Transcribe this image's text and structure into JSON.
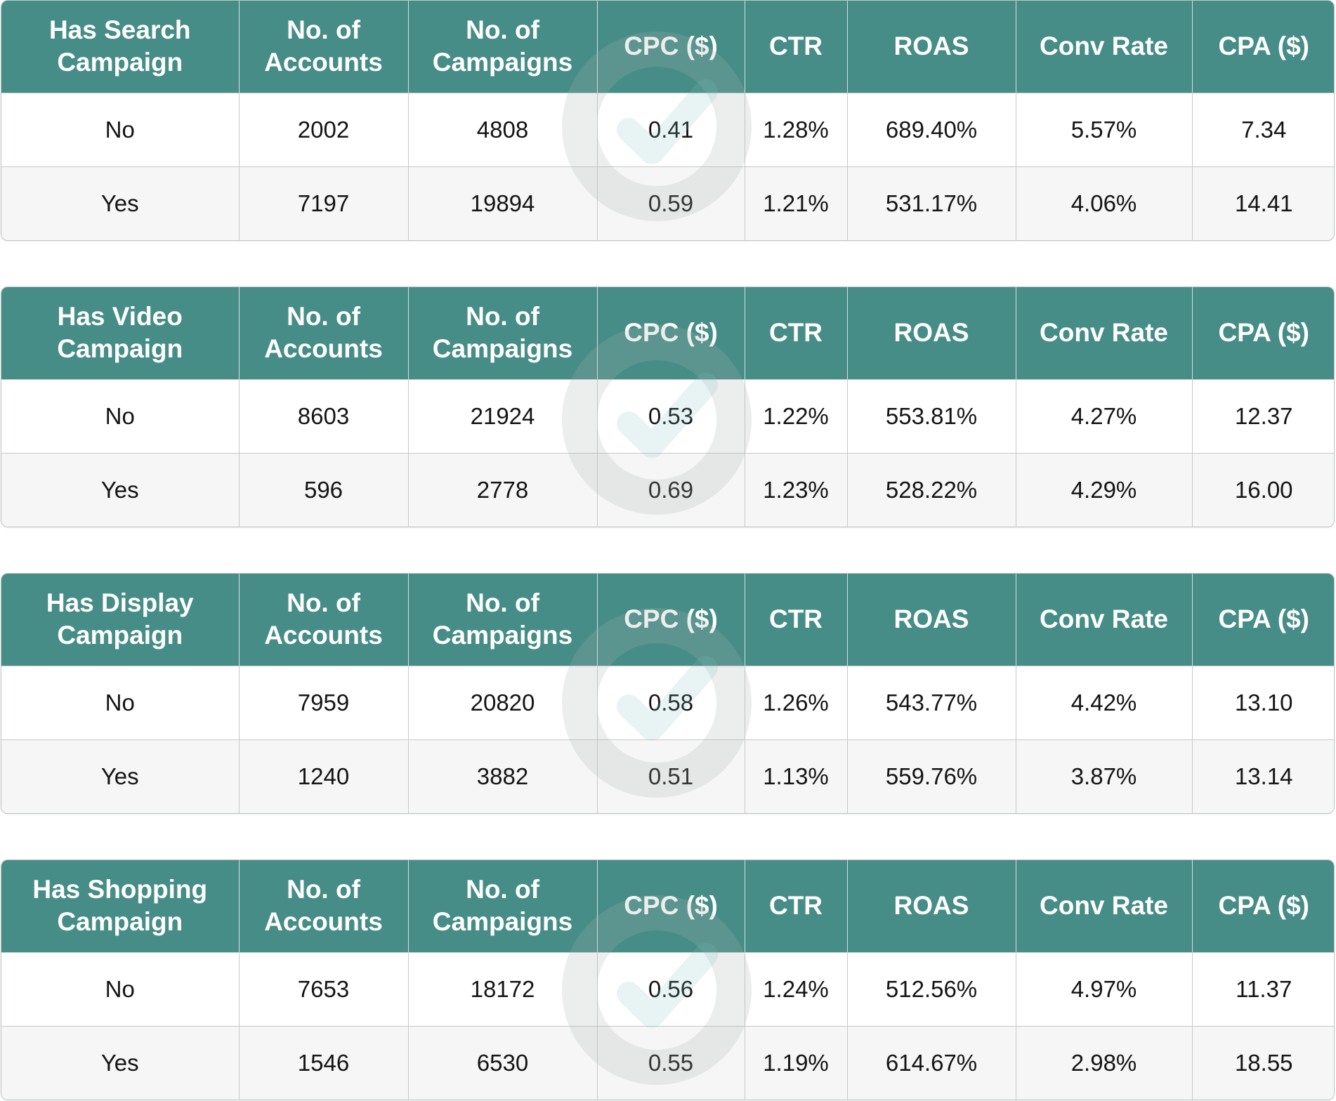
{
  "columns": [
    "No. of Accounts",
    "No. of Campaigns",
    "CPC ($)",
    "CTR",
    "ROAS",
    "Conv Rate",
    "CPA ($)"
  ],
  "tables": [
    {
      "first_header": "Has Search Campaign",
      "rows": [
        [
          "No",
          "2002",
          "4808",
          "0.41",
          "1.28%",
          "689.40%",
          "5.57%",
          "7.34"
        ],
        [
          "Yes",
          "7197",
          "19894",
          "0.59",
          "1.21%",
          "531.17%",
          "4.06%",
          "14.41"
        ]
      ]
    },
    {
      "first_header": "Has Video Campaign",
      "rows": [
        [
          "No",
          "8603",
          "21924",
          "0.53",
          "1.22%",
          "553.81%",
          "4.27%",
          "12.37"
        ],
        [
          "Yes",
          "596",
          "2778",
          "0.69",
          "1.23%",
          "528.22%",
          "4.29%",
          "16.00"
        ]
      ]
    },
    {
      "first_header": "Has Display Campaign",
      "rows": [
        [
          "No",
          "7959",
          "20820",
          "0.58",
          "1.26%",
          "543.77%",
          "4.42%",
          "13.10"
        ],
        [
          "Yes",
          "1240",
          "3882",
          "0.51",
          "1.13%",
          "559.76%",
          "3.87%",
          "13.14"
        ]
      ]
    },
    {
      "first_header": "Has Shopping Campaign",
      "rows": [
        [
          "No",
          "7653",
          "18172",
          "0.56",
          "1.24%",
          "512.56%",
          "4.97%",
          "11.37"
        ],
        [
          "Yes",
          "1546",
          "6530",
          "0.55",
          "1.19%",
          "614.67%",
          "2.98%",
          "18.55"
        ]
      ]
    }
  ],
  "colors": {
    "header_bg": "#478d87",
    "header_text": "#ffffff",
    "row_alt_bg": "#f6f6f6",
    "watermark": "#e9eceb"
  },
  "watermark_icon": "checkmark-circle-icon"
}
